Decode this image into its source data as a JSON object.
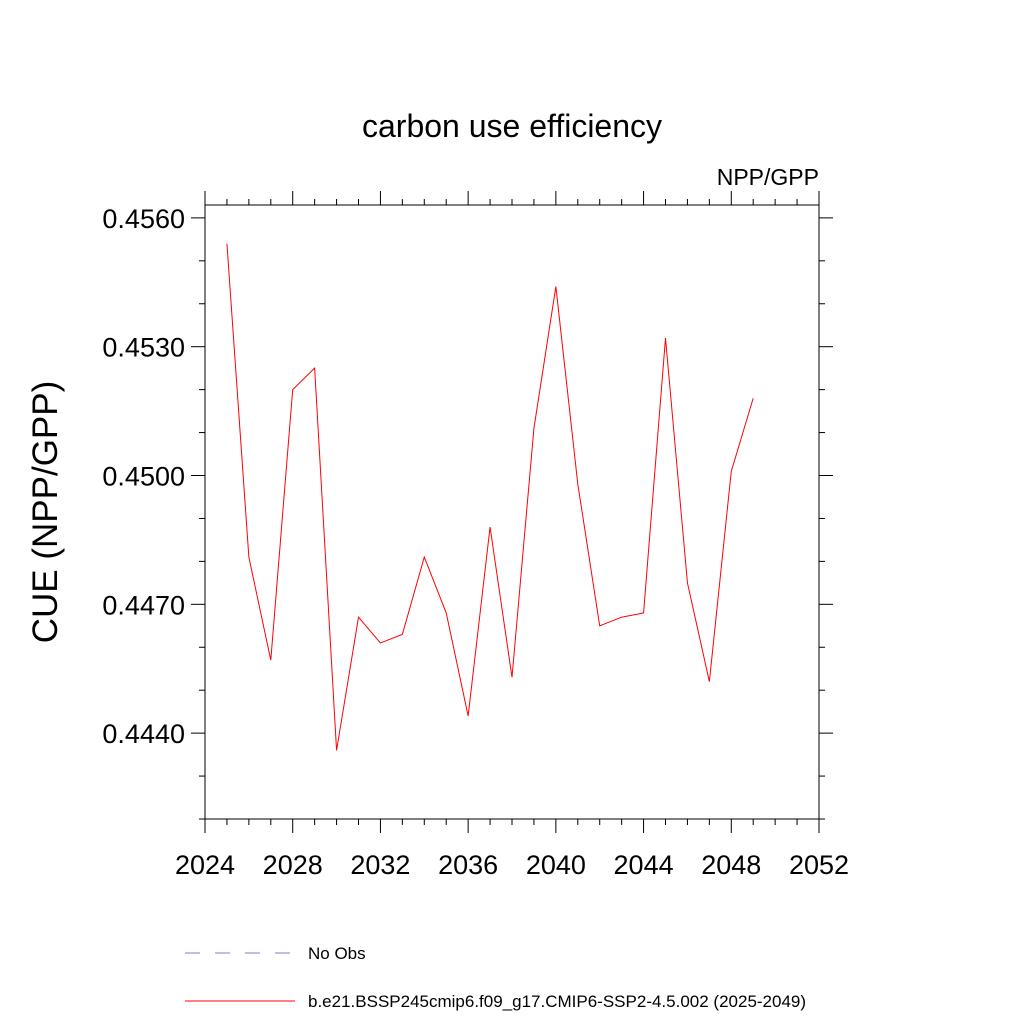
{
  "chart_data": {
    "type": "line",
    "title": "carbon use efficiency",
    "subtitle": "NPP/GPP",
    "xlabel": "",
    "ylabel": "CUE  (NPP/GPP)",
    "xlim": [
      2024,
      2052
    ],
    "ylim": [
      0.442,
      0.4563
    ],
    "xticks": [
      2024,
      2028,
      2032,
      2036,
      2040,
      2044,
      2048,
      2052
    ],
    "xtick_labels": [
      "2024",
      "2028",
      "2032",
      "2036",
      "2040",
      "2044",
      "2048",
      "2052"
    ],
    "yticks": [
      0.444,
      0.447,
      0.45,
      0.453,
      0.456
    ],
    "ytick_labels": [
      "0.4440",
      "0.4470",
      "0.4500",
      "0.4530",
      "0.4560"
    ],
    "grid": false,
    "series": [
      {
        "name": "b.e21.BSSP245cmip6.f09_g17.CMIP6-SSP2-4.5.002 (2025-2049)",
        "color": "#ff0000",
        "style": "solid",
        "x": [
          2025,
          2026,
          2027,
          2028,
          2029,
          2030,
          2031,
          2032,
          2033,
          2034,
          2035,
          2036,
          2037,
          2038,
          2039,
          2040,
          2041,
          2042,
          2043,
          2044,
          2045,
          2046,
          2047,
          2048,
          2049
        ],
        "y": [
          0.4554,
          0.4481,
          0.4457,
          0.452,
          0.4525,
          0.4436,
          0.4467,
          0.4461,
          0.4463,
          0.4481,
          0.4468,
          0.4444,
          0.4488,
          0.4453,
          0.4511,
          0.4544,
          0.4498,
          0.4465,
          0.4467,
          0.4468,
          0.4532,
          0.4475,
          0.4452,
          0.4501,
          0.4518
        ]
      },
      {
        "name": "No Obs",
        "color": "#7f7fcc",
        "style": "dashed",
        "x": [],
        "y": []
      }
    ]
  }
}
